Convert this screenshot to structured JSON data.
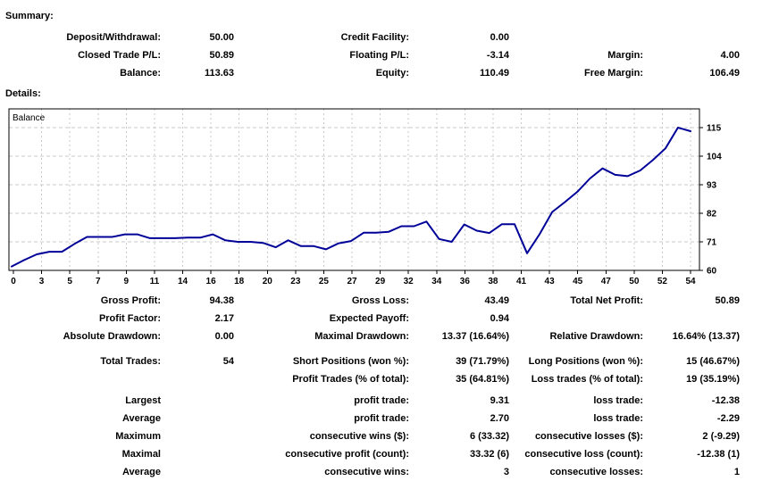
{
  "page": {
    "background": "#ffffff",
    "text_color": "#000000"
  },
  "summary": {
    "heading": "Summary:",
    "rows": [
      [
        "Deposit/Withdrawal:",
        "50.00",
        "Credit Facility:",
        "0.00",
        "",
        ""
      ],
      [
        "Closed Trade P/L:",
        "50.89",
        "Floating P/L:",
        "-3.14",
        "Margin:",
        "4.00"
      ],
      [
        "Balance:",
        "113.63",
        "Equity:",
        "110.49",
        "Free Margin:",
        "106.49"
      ]
    ]
  },
  "details": {
    "heading": "Details:"
  },
  "chart_data": {
    "type": "line",
    "title": "Balance",
    "legend_position": "top-left-inside",
    "grid": true,
    "line_color": "#000099",
    "grid_color": "#c9c9c9",
    "axis_color": "#000000",
    "xlabel": "",
    "ylabel": "",
    "ylim": [
      60,
      122
    ],
    "x": [
      0,
      1,
      2,
      3,
      4,
      5,
      6,
      7,
      8,
      9,
      10,
      11,
      12,
      13,
      14,
      15,
      16,
      17,
      18,
      19,
      20,
      21,
      22,
      23,
      24,
      25,
      26,
      27,
      28,
      29,
      30,
      31,
      32,
      33,
      34,
      35,
      36,
      37,
      38,
      39,
      40,
      41,
      42,
      43,
      44,
      45,
      46,
      47,
      48,
      49,
      50,
      51,
      52,
      53,
      54
    ],
    "series": [
      {
        "name": "Balance",
        "values": [
          61.5,
          64.0,
          66.2,
          67.2,
          67.2,
          70.2,
          72.9,
          72.9,
          72.9,
          73.9,
          73.9,
          72.4,
          72.4,
          72.4,
          72.6,
          72.6,
          73.9,
          71.6,
          71.0,
          71.0,
          70.6,
          68.9,
          71.6,
          69.4,
          69.4,
          68.1,
          70.4,
          71.3,
          74.5,
          74.5,
          74.9,
          77.0,
          77.0,
          78.8,
          72.1,
          71.0,
          77.7,
          75.3,
          74.4,
          77.8,
          77.8,
          66.6,
          74.0,
          82.5,
          86.3,
          90.3,
          95.4,
          99.3,
          96.8,
          96.3,
          98.5,
          102.5,
          107.0,
          115.0,
          113.63
        ]
      }
    ],
    "x_tick_labels": [
      "0",
      "3",
      "5",
      "7",
      "9",
      "11",
      "14",
      "16",
      "18",
      "20",
      "23",
      "25",
      "27",
      "29",
      "32",
      "34",
      "36",
      "38",
      "41",
      "43",
      "45",
      "47",
      "50",
      "52",
      "54"
    ],
    "y_ticks": [
      60,
      71,
      82,
      93,
      104,
      115
    ],
    "y_tick_labels": [
      "60",
      "71",
      "82",
      "93",
      "104",
      "115"
    ]
  },
  "stats": {
    "rows": [
      [
        "Gross Profit:",
        "94.38",
        "Gross Loss:",
        "43.49",
        "Total Net Profit:",
        "50.89"
      ],
      [
        "Profit Factor:",
        "2.17",
        "Expected Payoff:",
        "0.94",
        "",
        ""
      ],
      [
        "Absolute Drawdown:",
        "0.00",
        "Maximal Drawdown:",
        "13.37 (16.64%)",
        "Relative Drawdown:",
        "16.64% (13.37)"
      ],
      [
        "Total Trades:",
        "54",
        "Short Positions (won %):",
        "39 (71.79%)",
        "Long Positions (won %):",
        "15 (46.67%)"
      ],
      [
        "",
        "",
        "Profit Trades (% of total):",
        "35 (64.81%)",
        "Loss trades (% of total):",
        "19 (35.19%)"
      ],
      [
        "Largest",
        "",
        "profit trade:",
        "9.31",
        "loss trade:",
        "-12.38"
      ],
      [
        "Average",
        "",
        "profit trade:",
        "2.70",
        "loss trade:",
        "-2.29"
      ],
      [
        "Maximum",
        "",
        "consecutive wins ($):",
        "6 (33.32)",
        "consecutive losses ($):",
        "2 (-9.29)"
      ],
      [
        "Maximal",
        "",
        "consecutive profit (count):",
        "33.32 (6)",
        "consecutive loss (count):",
        "-12.38 (1)"
      ],
      [
        "Average",
        "",
        "consecutive wins:",
        "3",
        "consecutive losses:",
        "1"
      ]
    ]
  }
}
